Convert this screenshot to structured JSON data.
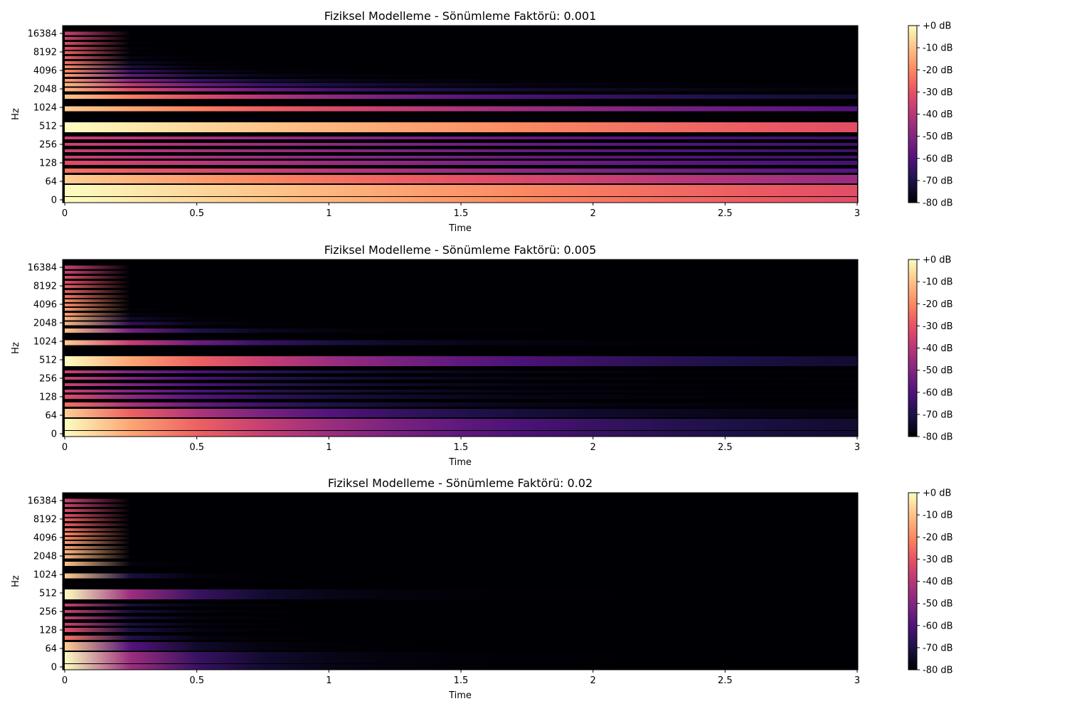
{
  "colors": {
    "magma_stops": [
      "#000004",
      "#1d1147",
      "#51127c",
      "#822681",
      "#b73779",
      "#e75263",
      "#fc8961",
      "#fec287",
      "#fcfdbf"
    ]
  },
  "chart_data": [
    {
      "type": "heatmap",
      "title": "Fiziksel Modelleme - Sönümleme Faktörü: 0.001",
      "xlabel": "Time",
      "ylabel": "Hz",
      "xlim": [
        0,
        3
      ],
      "x_ticks": [
        0,
        0.5,
        1,
        1.5,
        2,
        2.5,
        3
      ],
      "x_tick_labels": [
        "0",
        "0.5",
        "1",
        "1.5",
        "2",
        "2.5",
        "3"
      ],
      "y_scale": "log",
      "y_tick_labels": [
        "0",
        "64",
        "128",
        "256",
        "512",
        "1024",
        "2048",
        "4096",
        "8192",
        "16384"
      ],
      "colorbar": {
        "range_db": [
          -80,
          0
        ],
        "tick_labels": [
          "+0 dB",
          "-10 dB",
          "-20 dB",
          "-30 dB",
          "-40 dB",
          "-50 dB",
          "-60 dB",
          "-70 dB",
          "-80 dB"
        ]
      },
      "damping_factor": 0.001
    },
    {
      "type": "heatmap",
      "title": "Fiziksel Modelleme - Sönümleme Faktörü: 0.005",
      "xlabel": "Time",
      "ylabel": "Hz",
      "xlim": [
        0,
        3
      ],
      "x_ticks": [
        0,
        0.5,
        1,
        1.5,
        2,
        2.5,
        3
      ],
      "x_tick_labels": [
        "0",
        "0.5",
        "1",
        "1.5",
        "2",
        "2.5",
        "3"
      ],
      "y_scale": "log",
      "y_tick_labels": [
        "0",
        "64",
        "128",
        "256",
        "512",
        "1024",
        "2048",
        "4096",
        "8192",
        "16384"
      ],
      "colorbar": {
        "range_db": [
          -80,
          0
        ],
        "tick_labels": [
          "+0 dB",
          "-10 dB",
          "-20 dB",
          "-30 dB",
          "-40 dB",
          "-50 dB",
          "-60 dB",
          "-70 dB",
          "-80 dB"
        ]
      },
      "damping_factor": 0.005
    },
    {
      "type": "heatmap",
      "title": "Fiziksel Modelleme - Sönümleme Faktörü: 0.02",
      "xlabel": "Time",
      "ylabel": "Hz",
      "xlim": [
        0,
        3
      ],
      "x_ticks": [
        0,
        0.5,
        1,
        1.5,
        2,
        2.5,
        3
      ],
      "x_tick_labels": [
        "0",
        "0.5",
        "1",
        "1.5",
        "2",
        "2.5",
        "3"
      ],
      "y_scale": "log",
      "y_tick_labels": [
        "0",
        "64",
        "128",
        "256",
        "512",
        "1024",
        "2048",
        "4096",
        "8192",
        "16384"
      ],
      "colorbar": {
        "range_db": [
          -80,
          0
        ],
        "tick_labels": [
          "+0 dB",
          "-10 dB",
          "-20 dB",
          "-30 dB",
          "-40 dB",
          "-50 dB",
          "-60 dB",
          "-70 dB",
          "-80 dB"
        ]
      },
      "damping_factor": 0.02
    }
  ]
}
